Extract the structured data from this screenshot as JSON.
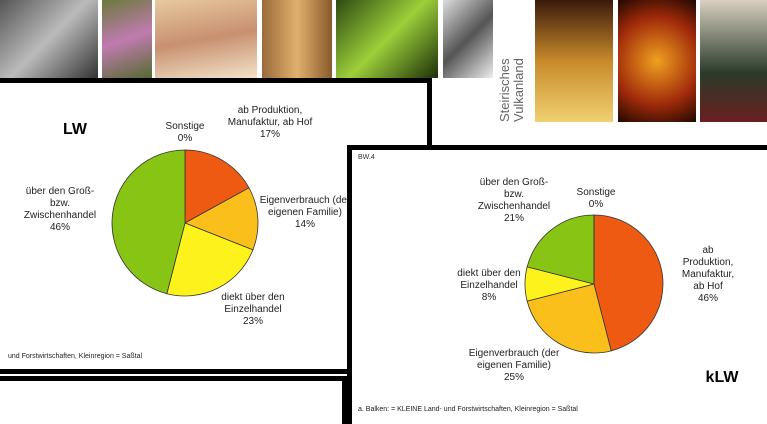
{
  "banner": {
    "text": "Steirisches\nVulkanland"
  },
  "chart_data": [
    {
      "type": "pie",
      "title": "LW",
      "categories": [
        "Sonstige",
        "ab Produktion,\nManufaktur, ab Hof",
        "Eigenverbrauch (der\neigenen Familie)",
        "diekt über den\nEinzelhandel",
        "über den Groß-\nbzw.\nZwischenhandel"
      ],
      "values": [
        0,
        17,
        14,
        23,
        46
      ],
      "value_labels": [
        "0%",
        "17%",
        "14%",
        "23%",
        "46%"
      ],
      "colors": [
        "#e0e0e0",
        "#ee5a12",
        "#fbbf1c",
        "#fdf21c",
        "#88c414"
      ],
      "footnote": "und Forstwirtschaften, Kleinregion = Saßtal"
    },
    {
      "type": "pie",
      "title": "kLW",
      "tag": "BW.4",
      "categories": [
        "ab Produktion,\nManufaktur, ab Hof",
        "Eigenverbrauch (der\neigenen Familie)",
        "diekt über den\nEinzelhandel",
        "über den Groß-\nbzw.\nZwischenhandel",
        "Sonstige"
      ],
      "values": [
        46,
        25,
        8,
        21,
        0
      ],
      "value_labels": [
        "46%",
        "25%",
        "8%",
        "21%",
        "0%"
      ],
      "colors": [
        "#ee5a12",
        "#fbbf1c",
        "#fdf21c",
        "#88c414",
        "#e0e0e0"
      ],
      "footnote": "a. Balken: = KLEINE Land- und Forstwirtschaften, Kleinregion = Saßtal"
    }
  ]
}
